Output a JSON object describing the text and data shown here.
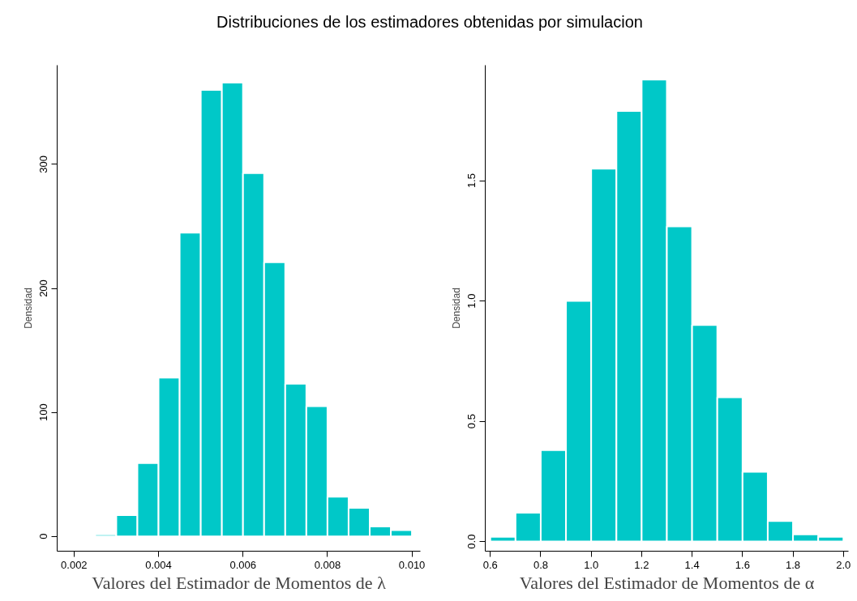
{
  "chart_data": [
    {
      "type": "histogram",
      "title": "Distribuciones de los estimadores obtenidas por simulacion",
      "xlabel": "Valores del Estimador de Momentos de λ",
      "ylabel": "Densidad",
      "color": "#00c8c8",
      "bins": [
        0.0025,
        0.003,
        0.0035,
        0.004,
        0.0045,
        0.005,
        0.0055,
        0.006,
        0.0065,
        0.007,
        0.0075,
        0.008,
        0.0085,
        0.009,
        0.0095,
        0.01
      ],
      "values": [
        1.5,
        17,
        59,
        128,
        245,
        360,
        366,
        293,
        221,
        123,
        105,
        32,
        23,
        8,
        5
      ],
      "xlim": [
        0.0016,
        0.0102
      ],
      "ylim": [
        -12,
        380
      ],
      "xticks": [
        {
          "value": 0.002,
          "label": "0.002"
        },
        {
          "value": 0.004,
          "label": "0.004"
        },
        {
          "value": 0.006,
          "label": "0.006"
        },
        {
          "value": 0.008,
          "label": "0.008"
        },
        {
          "value": 0.01,
          "label": "0.010"
        }
      ],
      "yticks": [
        0,
        100,
        200,
        300
      ]
    },
    {
      "type": "histogram",
      "xlabel": "Valores del Estimador de Momentos de α",
      "ylabel": "Densidad",
      "color": "#00c8c8",
      "bins": [
        0.6,
        0.7,
        0.8,
        0.9,
        1.0,
        1.1,
        1.2,
        1.3,
        1.4,
        1.5,
        1.6,
        1.7,
        1.8,
        1.9,
        2.0
      ],
      "values": [
        0.02,
        0.12,
        0.38,
        1.0,
        1.55,
        1.79,
        1.92,
        1.31,
        0.9,
        0.6,
        0.29,
        0.085,
        0.03,
        0.02
      ],
      "xlim": [
        0.58,
        2.02
      ],
      "ylim": [
        -0.04,
        1.98
      ],
      "xticks": [
        {
          "value": 0.6,
          "label": "0.6"
        },
        {
          "value": 0.8,
          "label": "0.8"
        },
        {
          "value": 1.0,
          "label": "1.0"
        },
        {
          "value": 1.2,
          "label": "1.2"
        },
        {
          "value": 1.4,
          "label": "1.4"
        },
        {
          "value": 1.6,
          "label": "1.6"
        },
        {
          "value": 1.8,
          "label": "1.8"
        },
        {
          "value": 2.0,
          "label": "2.0"
        }
      ],
      "yticks": [
        {
          "value": 0.0,
          "label": "0.0"
        },
        {
          "value": 0.5,
          "label": "0.5"
        },
        {
          "value": 1.0,
          "label": "1.0"
        },
        {
          "value": 1.5,
          "label": "1.5"
        }
      ]
    }
  ]
}
